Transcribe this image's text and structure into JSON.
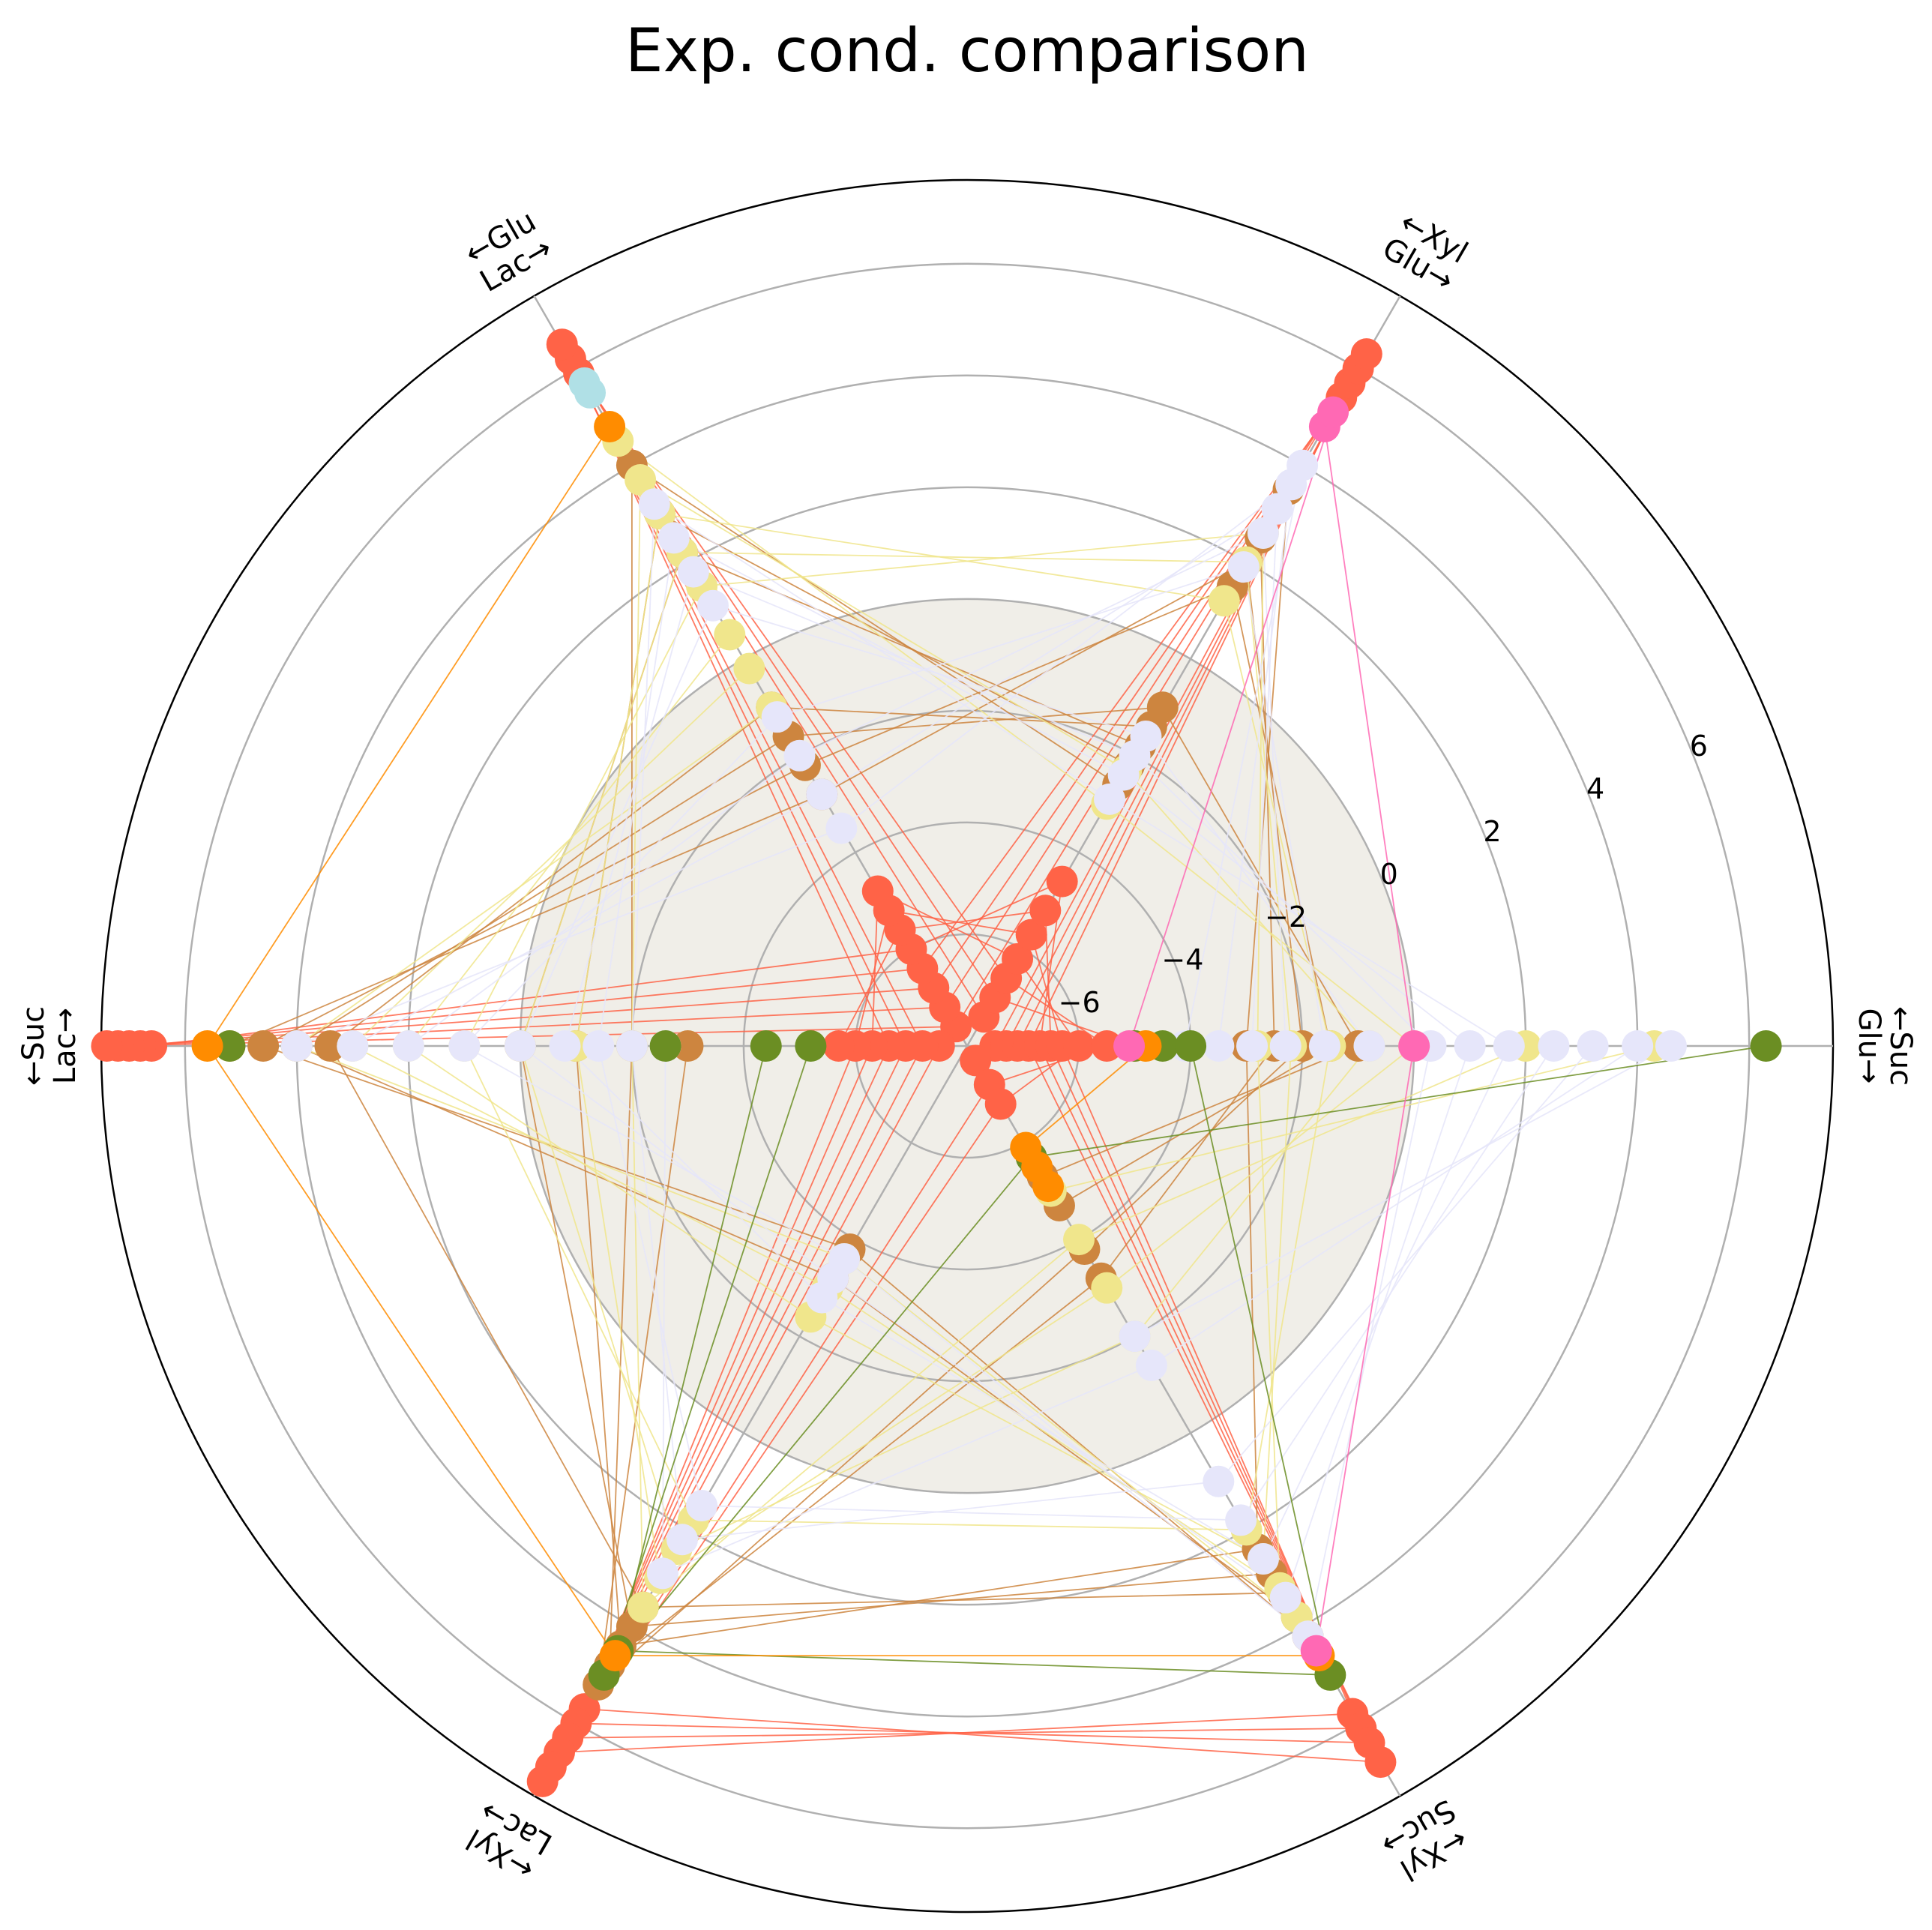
{
  "chart_data": {
    "type": "hive",
    "title": "Exp. cond. comparison",
    "radial_ticks": [
      -6,
      -4,
      -2,
      0,
      2,
      4,
      6
    ],
    "radial_range": [
      -8,
      7.5
    ],
    "shaded_region_max": 0,
    "axes": [
      {
        "angle_deg": 0,
        "label_line1": "←Suc",
        "label_line2": "Glu→"
      },
      {
        "angle_deg": 60,
        "label_line1": "←Xyl",
        "label_line2": "Glu→"
      },
      {
        "angle_deg": 120,
        "label_line1": "←Glu",
        "label_line2": "Lac→"
      },
      {
        "angle_deg": 180,
        "label_line1": "←Suc",
        "label_line2": "Lac→"
      },
      {
        "angle_deg": 240,
        "label_line1": "←Xyl",
        "label_line2": "Lac→"
      },
      {
        "angle_deg": 300,
        "label_line1": "←Xyl",
        "label_line2": "Suc→"
      }
    ],
    "groups": [
      {
        "color": "#FF6347",
        "axes": {
          "0": [
            -7.5,
            -7.3,
            -7.1,
            -6.9,
            -6.7,
            -6.5,
            -6.3,
            -6.0,
            -5.5,
            -5.0
          ],
          "60": [
            -7.4,
            -7.0,
            -6.6,
            -6.2,
            -5.7,
            -5.2,
            -4.6,
            5.4,
            5.7,
            6.0,
            6.3
          ],
          "120": [
            -7.6,
            -7.2,
            -6.8,
            -6.4,
            -6.0,
            -5.6,
            -5.2,
            -4.8,
            5.9,
            6.2,
            6.5
          ],
          "180": [
            -7.5,
            -7.2,
            -6.9,
            -6.6,
            -6.3,
            -6.0,
            -5.7,
            6.6,
            6.8,
            7.0,
            7.2,
            7.4
          ],
          "240": [
            5.7,
            6.0,
            6.3,
            6.6,
            6.9,
            7.2
          ],
          "300": [
            -7.7,
            -7.2,
            -6.8,
            5.8,
            6.1,
            6.4,
            6.8
          ]
        }
      },
      {
        "color": "#CD853F",
        "axes": {
          "0": [
            -3.0,
            -2.5,
            -2.0,
            -1.5,
            -1.0
          ],
          "60": [
            -2.6,
            -2.2,
            -1.8,
            -1.4,
            -1.0,
            1.5,
            2.0,
            2.5,
            3.5
          ],
          "120": [
            -2.8,
            -2.2,
            -1.6,
            -1.0,
            2.2,
            3.0,
            4.0
          ],
          "180": [
            -3.0,
            -2.0,
            -1.0,
            0.0,
            3.4,
            4.0,
            4.6,
            5.2
          ],
          "240": [
            -3.8,
            -3.2,
            3.6,
            4.0,
            4.4,
            4.8,
            5.2
          ],
          "300": [
            -5.3,
            -4.7,
            -3.8,
            -3.2,
            2.4,
            2.9,
            3.3,
            3.8,
            4.2
          ]
        }
      },
      {
        "color": "#F0E68C",
        "axes": {
          "0": [
            -2.8,
            -2.2,
            -1.5,
            -0.8,
            0.0,
            2.0,
            4.3
          ],
          "60": [
            -3.0,
            -2.3,
            1.2,
            2.0,
            2.6
          ],
          "120": [
            -1.0,
            -0.2,
            0.5,
            1.5,
            2.2,
            3.0,
            3.7,
            4.5
          ],
          "180": [
            -2.0,
            -1.0,
            0.0,
            1.0,
            2.0,
            3.0,
            4.0
          ],
          "240": [
            -3.6,
            -3.0,
            -2.4,
            1.8,
            2.4,
            3.0,
            3.6
          ],
          "300": [
            -5.0,
            -4.0,
            -3.0,
            -2.0,
            2.0,
            2.6,
            3.2,
            3.8
          ]
        }
      },
      {
        "color": "#E6E6FA",
        "axes": {
          "0": [
            -4.1,
            -3.5,
            -2.9,
            -2.3,
            -1.6,
            -0.8,
            0.3,
            1.0,
            1.7,
            2.5,
            3.2,
            4.0,
            4.6
          ],
          "60": [
            -2.9,
            -2.4,
            -2.0,
            -1.6,
            1.9,
            2.6,
            3.1,
            3.6,
            4.0
          ],
          "120": [
            -3.5,
            -2.8,
            -2.0,
            -1.2,
            1.1,
            1.8,
            2.5,
            3.2
          ],
          "180": [
            -2.6,
            -2.0,
            -1.4,
            -0.8,
            0.0,
            1.0,
            2.0,
            3.0,
            4.0
          ],
          "240": [
            -3.6,
            -3.2,
            -2.8,
            1.5,
            2.2,
            2.9
          ],
          "300": [
            -2.0,
            -1.4,
            1.0,
            1.8,
            2.6,
            3.4,
            4.2
          ]
        }
      },
      {
        "color": "#6B8E23",
        "axes": {
          "0": [
            -5.0,
            -4.5,
            -4.0,
            6.3
          ],
          "180": [
            -5.2,
            -4.4,
            -2.6,
            5.2
          ],
          "240": [
            4.5,
            5.0
          ],
          "300": [
            -5.7,
            5.0
          ]
        }
      },
      {
        "color": "#FF8C00",
        "axes": {
          "0": [
            -4.8
          ],
          "120": [
            4.8
          ],
          "180": [
            5.6
          ],
          "240": [
            4.6
          ],
          "300": [
            -5.9,
            -5.5,
            -5.1,
            4.6
          ]
        }
      },
      {
        "color": "#FF69B4",
        "axes": {
          "0": [
            -5.1,
            0.0
          ],
          "60": [
            4.8,
            5.1
          ],
          "300": [
            4.5
          ]
        }
      },
      {
        "color": "#B0E0E6",
        "axes": {
          "120": [
            5.5,
            5.7
          ]
        }
      }
    ]
  }
}
